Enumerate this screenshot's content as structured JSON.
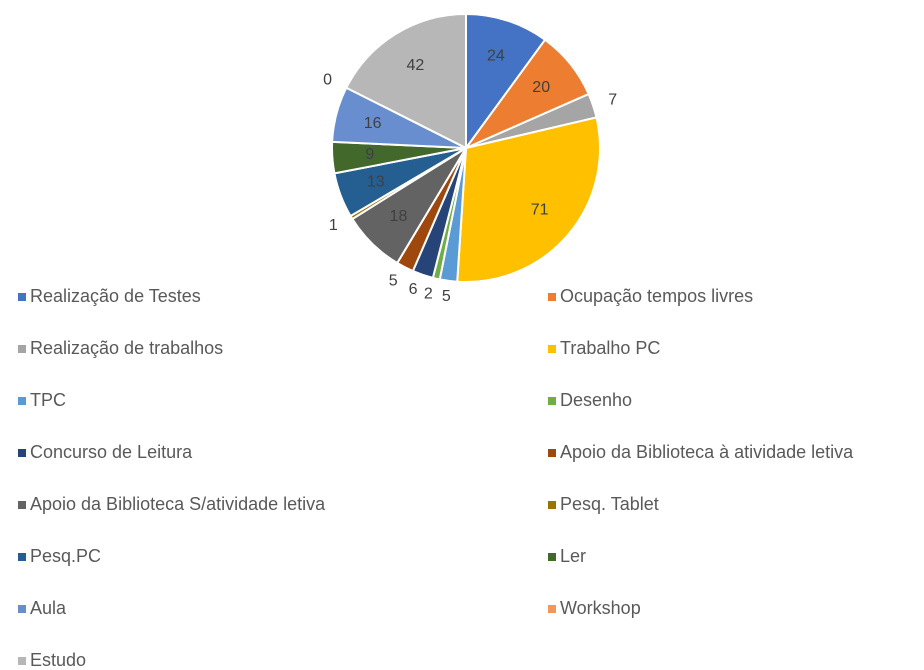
{
  "chart_data": {
    "type": "pie",
    "categories": [
      "Realização de Testes",
      "Ocupação tempos livres",
      "Realização de trabalhos",
      "Trabalho PC",
      "TPC",
      "Desenho",
      "Concurso de Leitura",
      "Apoio da Biblioteca à atividade letiva",
      "Apoio da Biblioteca S/atividade letiva",
      "Pesq. Tablet",
      "Pesq.PC",
      "Ler",
      "Aula",
      "Workshop",
      "Estudo"
    ],
    "values": [
      24,
      20,
      7,
      71,
      5,
      2,
      6,
      5,
      18,
      1,
      13,
      9,
      16,
      0,
      42
    ],
    "colors": [
      "#4472c4",
      "#ed7d31",
      "#a5a5a5",
      "#ffc000",
      "#5b9bd5",
      "#70ad47",
      "#264478",
      "#9e480e",
      "#636363",
      "#997300",
      "#255e91",
      "#43682b",
      "#698ed0",
      "#f1975a",
      "#b7b7b7"
    ],
    "legend": "bottom"
  }
}
